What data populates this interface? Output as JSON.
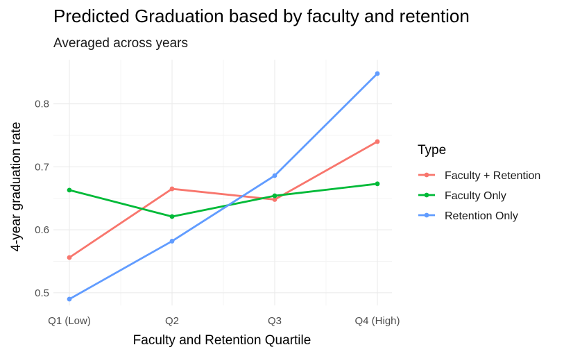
{
  "chart_data": {
    "type": "line",
    "title": "Predicted Graduation based by faculty and retention",
    "subtitle": "Averaged across years",
    "xlabel": "Faculty and Retention Quartile",
    "ylabel": "4-year graduation rate",
    "categories": [
      "Q1 (Low)",
      "Q2",
      "Q3",
      "Q4 (High)"
    ],
    "ylim": [
      0.48,
      0.87
    ],
    "yticks": [
      0.5,
      0.6,
      0.7,
      0.8
    ],
    "ytick_labels": [
      "0.5",
      "0.6",
      "0.7",
      "0.8"
    ],
    "grid": true,
    "legend_title": "Type",
    "legend_position": "right",
    "series": [
      {
        "name": "Faculty + Retention",
        "color": "#f8766d",
        "values": [
          0.556,
          0.665,
          0.648,
          0.74
        ]
      },
      {
        "name": "Faculty Only",
        "color": "#00ba38",
        "values": [
          0.663,
          0.621,
          0.654,
          0.673
        ]
      },
      {
        "name": "Retention Only",
        "color": "#619cff",
        "values": [
          0.49,
          0.582,
          0.686,
          0.848
        ]
      }
    ]
  }
}
